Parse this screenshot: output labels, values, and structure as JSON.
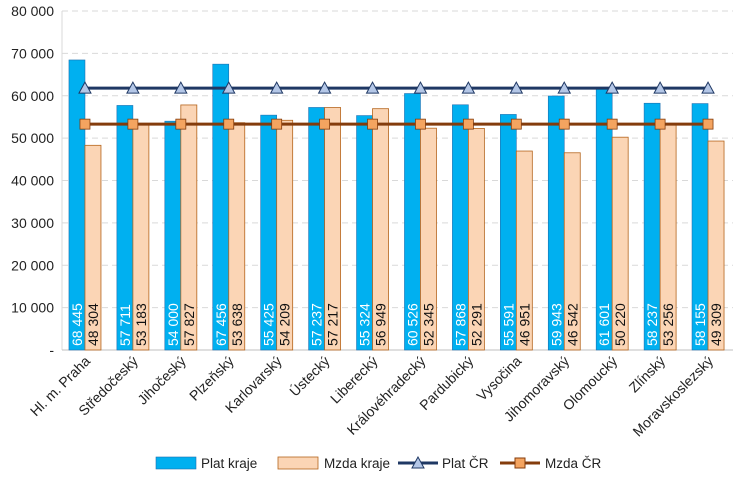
{
  "chart_data": {
    "type": "bar",
    "title": "",
    "xlabel": "",
    "ylabel": "",
    "ylim": [
      0,
      80000
    ],
    "yticks": [
      0,
      10000,
      20000,
      30000,
      40000,
      50000,
      60000,
      70000,
      80000
    ],
    "ytick_labels": [
      "-",
      "10 000",
      "20 000",
      "30 000",
      "40 000",
      "50 000",
      "60 000",
      "70 000",
      "80 000"
    ],
    "grid": true,
    "legend_position": "bottom",
    "categories": [
      "Hl. m. Praha",
      "Středočeský",
      "Jihočeský",
      "Plzeňský",
      "Karlovarský",
      "Ústecký",
      "Liberecký",
      "Královéhradecký",
      "Pardubický",
      "Vysočina",
      "Jihomoravský",
      "Olomoucký",
      "Zlínský",
      "Moravskoslezský"
    ],
    "series": [
      {
        "name": "Plat kraje",
        "type": "bar",
        "color": "#00B0F0",
        "values": [
          68445,
          57711,
          54000,
          67456,
          55425,
          57237,
          55324,
          60526,
          57868,
          55591,
          59943,
          61601,
          58237,
          58155
        ],
        "labels": [
          "68 445",
          "57 711",
          "54 000",
          "67 456",
          "55 425",
          "57 237",
          "55 324",
          "60 526",
          "57 868",
          "55 591",
          "59 943",
          "61 601",
          "58 237",
          "58 155"
        ]
      },
      {
        "name": "Mzda kraje",
        "type": "bar",
        "color": "#FBD5B5",
        "values": [
          48304,
          53183,
          57827,
          53638,
          54209,
          57217,
          56949,
          52345,
          52291,
          46951,
          46542,
          50220,
          53256,
          49309
        ],
        "labels": [
          "48 304",
          "53 183",
          "57 827",
          "53 638",
          "54 209",
          "57 217",
          "56 949",
          "52 345",
          "52 291",
          "46 951",
          "46 542",
          "50 220",
          "53 256",
          "49 309"
        ]
      },
      {
        "name": "Plat ČR",
        "type": "line",
        "color": "#1F3864",
        "marker": "triangle",
        "value": 61800
      },
      {
        "name": "Mzda ČR",
        "type": "line",
        "color": "#843C0C",
        "marker": "square",
        "value": 53300
      }
    ]
  }
}
